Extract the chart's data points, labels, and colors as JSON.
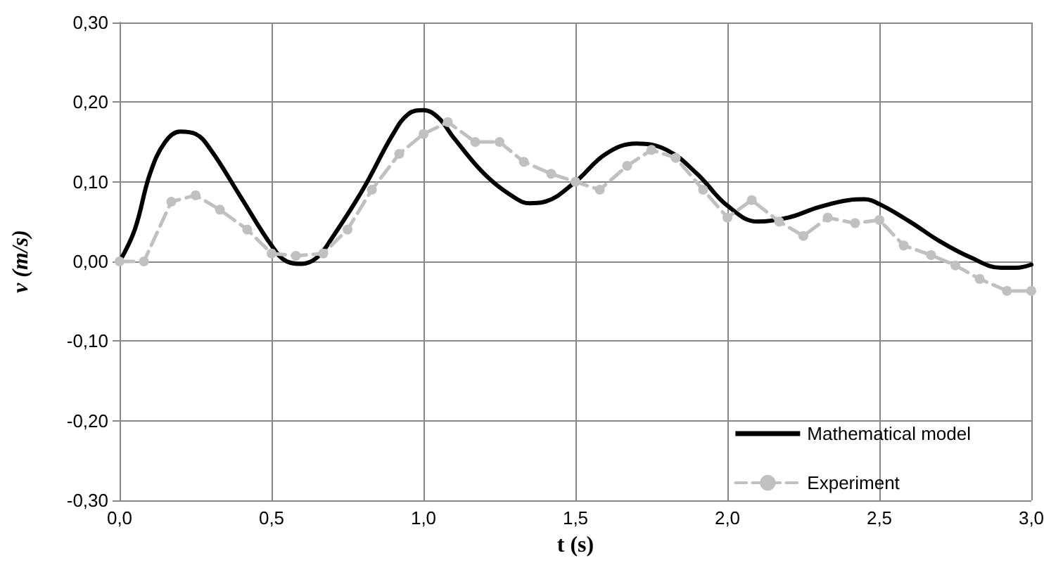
{
  "chart_data": {
    "type": "line",
    "xlabel": "t (s)",
    "ylabel": "v (m/s)",
    "xlim": [
      0,
      3
    ],
    "ylim": [
      -0.3,
      0.3
    ],
    "xticks": [
      {
        "value": 0,
        "label": "0,0"
      },
      {
        "value": 0.5,
        "label": "0,5"
      },
      {
        "value": 1,
        "label": "1,0"
      },
      {
        "value": 1.5,
        "label": "1,5"
      },
      {
        "value": 2,
        "label": "2,0"
      },
      {
        "value": 2.5,
        "label": "2,5"
      },
      {
        "value": 3,
        "label": "3,0"
      }
    ],
    "yticks": [
      {
        "value": -0.3,
        "label": "-0,30"
      },
      {
        "value": -0.2,
        "label": "-0,20"
      },
      {
        "value": -0.1,
        "label": "-0,10"
      },
      {
        "value": 0,
        "label": "0,00"
      },
      {
        "value": 0.1,
        "label": "0,10"
      },
      {
        "value": 0.2,
        "label": "0,20"
      },
      {
        "value": 0.3,
        "label": "0,30"
      }
    ],
    "grid": true,
    "legend": "bottom right",
    "series": [
      {
        "name": "Mathematical model",
        "color": "#000000",
        "marker": "none",
        "line_style": "solid",
        "x": [
          0,
          0.05,
          0.1,
          0.15,
          0.2,
          0.25,
          0.3,
          0.4,
          0.5,
          0.55,
          0.6,
          0.65,
          0.7,
          0.8,
          0.9,
          0.95,
          1.0,
          1.05,
          1.1,
          1.2,
          1.3,
          1.35,
          1.4,
          1.5,
          1.6,
          1.7,
          1.8,
          1.9,
          2.0,
          2.1,
          2.2,
          2.3,
          2.4,
          2.45,
          2.5,
          2.6,
          2.7,
          2.8,
          2.9,
          2.95,
          3.0
        ],
        "values": [
          0,
          0.04,
          0.11,
          0.15,
          0.163,
          0.16,
          0.14,
          0.08,
          0.02,
          0.0,
          -0.003,
          0.005,
          0.03,
          0.09,
          0.16,
          0.185,
          0.19,
          0.18,
          0.155,
          0.11,
          0.08,
          0.073,
          0.075,
          0.1,
          0.135,
          0.148,
          0.14,
          0.11,
          0.07,
          0.05,
          0.055,
          0.068,
          0.077,
          0.078,
          0.072,
          0.05,
          0.025,
          0.005,
          -0.008,
          -0.008,
          -0.004
        ]
      },
      {
        "name": "Experiment",
        "color": "#c0c0c0",
        "marker": "circle",
        "line_style": "dashed",
        "x": [
          0,
          0.08,
          0.17,
          0.25,
          0.33,
          0.42,
          0.5,
          0.58,
          0.67,
          0.75,
          0.83,
          0.92,
          1.0,
          1.08,
          1.17,
          1.25,
          1.33,
          1.42,
          1.5,
          1.58,
          1.67,
          1.75,
          1.83,
          1.92,
          2.0,
          2.08,
          2.17,
          2.25,
          2.33,
          2.42,
          2.5,
          2.58,
          2.67,
          2.75,
          2.83,
          2.92,
          3.0
        ],
        "values": [
          0,
          0,
          0.075,
          0.083,
          0.065,
          0.04,
          0.01,
          0.007,
          0.01,
          0.04,
          0.09,
          0.135,
          0.16,
          0.175,
          0.15,
          0.15,
          0.125,
          0.11,
          0.1,
          0.09,
          0.12,
          0.14,
          0.13,
          0.09,
          0.055,
          0.077,
          0.05,
          0.032,
          0.055,
          0.048,
          0.052,
          0.02,
          0.008,
          -0.005,
          -0.022,
          -0.037,
          -0.037
        ]
      }
    ]
  }
}
